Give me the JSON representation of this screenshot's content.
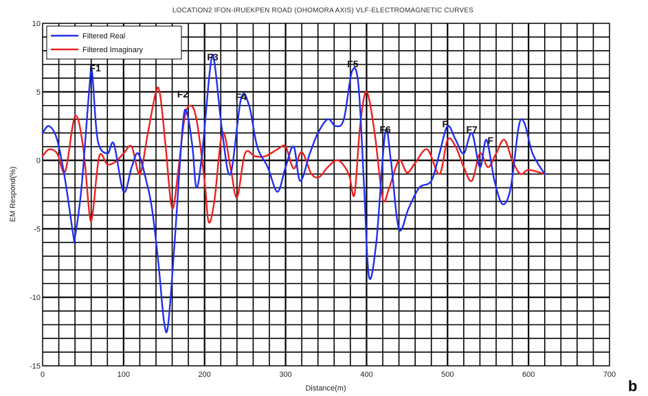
{
  "chart_data": {
    "type": "line",
    "title": "LOCATION2 IFON-IRUEKPEN ROAD (OHOMORA AXIS) VLF-ELECTROMAGNETIC CURVES",
    "xlabel": "Distance(m)",
    "ylabel": "EM Respond(%)",
    "xlim": [
      0,
      700
    ],
    "ylim": [
      -15,
      10
    ],
    "xticks": [
      "0",
      "100",
      "200",
      "300",
      "400",
      "500",
      "600",
      "700"
    ],
    "yticks": [
      "10",
      "5",
      "0",
      "-5",
      "-10",
      "-15"
    ],
    "grid": true,
    "legend_position": "top-left",
    "panel_label": "b",
    "series": [
      {
        "name": "Filtered Real",
        "color": "#1f2ff0",
        "x": [
          0,
          8,
          18,
          28,
          38,
          40,
          48,
          58,
          61,
          68,
          80,
          88,
          100,
          110,
          118,
          128,
          135,
          143,
          150,
          155,
          163,
          173,
          178,
          185,
          190,
          197,
          207,
          212,
          222,
          232,
          245,
          255,
          265,
          278,
          290,
          300,
          310,
          318,
          330,
          340,
          352,
          362,
          372,
          382,
          390,
          397,
          403,
          412,
          423,
          430,
          440,
          452,
          465,
          480,
          490,
          500,
          510,
          520,
          530,
          540,
          548,
          558,
          568,
          578,
          588,
          595,
          605,
          620
        ],
        "y": [
          2.0,
          2.5,
          1.5,
          -1.5,
          -5.5,
          -5.6,
          -2.0,
          5.5,
          6.5,
          1.5,
          0.5,
          1.2,
          -2.3,
          -0.5,
          0.5,
          -1.5,
          -3.5,
          -7.5,
          -11.8,
          -12.0,
          -6.0,
          2.5,
          3.5,
          1.0,
          -2.0,
          0.5,
          6.8,
          7.2,
          2.0,
          -1.0,
          4.5,
          4.0,
          1.0,
          -0.5,
          -2.3,
          -0.5,
          1.0,
          -1.5,
          0.5,
          2.0,
          3.0,
          2.5,
          3.0,
          6.5,
          5.5,
          -2.0,
          -8.5,
          -6.0,
          2.0,
          0.0,
          -5.0,
          -3.5,
          -2.0,
          -1.5,
          0.5,
          2.5,
          1.5,
          0.5,
          2.0,
          -0.5,
          1.5,
          -1.5,
          -3.2,
          -2.0,
          2.5,
          2.7,
          0.5,
          -1.0
        ]
      },
      {
        "name": "Filtered Imaginary",
        "color": "#ee2020",
        "x": [
          0,
          8,
          18,
          28,
          40,
          50,
          58,
          62,
          70,
          80,
          90,
          100,
          110,
          120,
          130,
          140,
          145,
          152,
          160,
          168,
          175,
          182,
          190,
          200,
          205,
          212,
          222,
          232,
          240,
          250,
          262,
          275,
          290,
          300,
          310,
          320,
          332,
          342,
          352,
          365,
          378,
          385,
          392,
          400,
          410,
          420,
          428,
          440,
          450,
          460,
          475,
          490,
          500,
          510,
          520,
          530,
          540,
          550,
          560,
          570,
          580,
          590,
          600,
          620
        ],
        "y": [
          0.3,
          0.8,
          0.5,
          -0.8,
          3.2,
          1.0,
          -4.0,
          -3.8,
          0.3,
          -0.3,
          -0.1,
          0.5,
          1.0,
          -1.0,
          2.0,
          5.0,
          4.8,
          1.0,
          -3.5,
          -0.5,
          3.0,
          4.0,
          3.0,
          -1.5,
          -4.5,
          -3.0,
          2.0,
          -0.5,
          -2.7,
          0.5,
          0.3,
          0.3,
          0.8,
          1.0,
          -0.6,
          0.6,
          -1.0,
          -1.2,
          -0.5,
          0.0,
          -1.0,
          -2.5,
          2.5,
          5.0,
          2.0,
          -2.8,
          -2.0,
          0.0,
          -0.9,
          -0.2,
          0.8,
          -1.0,
          1.5,
          1.0,
          -0.5,
          -1.5,
          0.5,
          -0.5,
          0.5,
          1.5,
          0.0,
          -1.0,
          -0.7,
          -1.0
        ]
      }
    ],
    "annotations": [
      {
        "text": "F1",
        "x": 65,
        "y": 6.5
      },
      {
        "text": "F2",
        "x": 173,
        "y": 4.6
      },
      {
        "text": "F3",
        "x": 210,
        "y": 7.3
      },
      {
        "text": "F4",
        "x": 245,
        "y": 4.4
      },
      {
        "text": "F5",
        "x": 383,
        "y": 6.8
      },
      {
        "text": "F6",
        "x": 423,
        "y": 2.0
      },
      {
        "text": "F",
        "x": 497,
        "y": 2.4
      },
      {
        "text": "F7",
        "x": 530,
        "y": 2.0
      },
      {
        "text": "F",
        "x": 553,
        "y": 1.2
      }
    ]
  }
}
